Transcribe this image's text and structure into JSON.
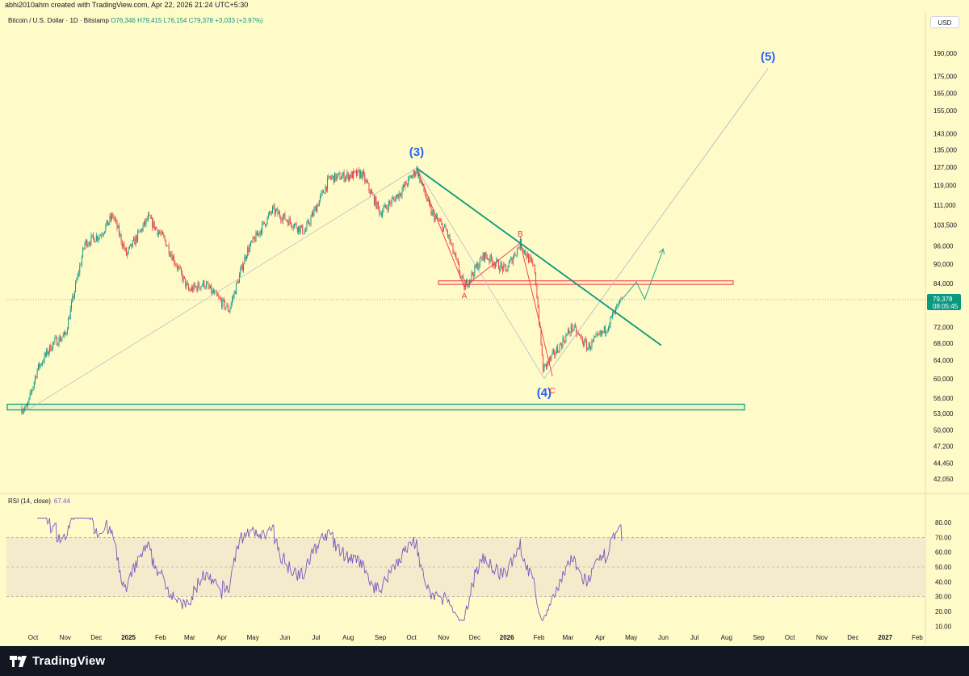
{
  "header": {
    "text": "abhi2010ahm created with TradingView.com, Apr 22, 2026 21:24 UTC+5:30"
  },
  "legend": {
    "symbol": "Bitcoin / U.S. Dollar · 1D · Bitstamp",
    "open": "O76,346",
    "high": "H79,415",
    "low": "L76,154",
    "close": "C79,378",
    "change": "+3,033 (+3.97%)"
  },
  "currency": "USD",
  "price_tag": {
    "price": "79,378",
    "countdown": "08:05:45"
  },
  "rsi_legend": {
    "label": "RSI (14, close)",
    "value": "67.44"
  },
  "footer": {
    "brand": "TradingView"
  },
  "colors": {
    "background": "#fffbc8",
    "up": "#089981",
    "down": "#f23645",
    "rsi_line": "#7e57c2",
    "rsi_band": "#f2e8cc",
    "trendline": "#089981",
    "wave_label": "#2962ff",
    "abc_label": "#f23645"
  },
  "chart_data": [
    {
      "type": "candlestick",
      "title": "Bitcoin / U.S. Dollar · 1D · Bitstamp",
      "y_scale": "log",
      "ylim": [
        40000,
        205000
      ],
      "y_ticks": [
        "190,000",
        "175,000",
        "165,000",
        "155,000",
        "143,000",
        "135,000",
        "127,000",
        "119,000",
        "111,000",
        "103,500",
        "96,000",
        "90,000",
        "84,000",
        "72,000",
        "68,000",
        "64,000",
        "60,000",
        "56,000",
        "53,000",
        "50,000",
        "47,200",
        "44,450",
        "42,050"
      ],
      "x_ticks": [
        "Oct",
        "Nov",
        "Dec",
        "2025",
        "Feb",
        "Mar",
        "Apr",
        "May",
        "Jun",
        "Jul",
        "Aug",
        "Sep",
        "Oct",
        "Nov",
        "Dec",
        "2026",
        "Feb",
        "Mar",
        "Apr",
        "May",
        "Jun",
        "Jul",
        "Aug",
        "Sep",
        "Oct",
        "Nov",
        "Dec",
        "2027",
        "Feb"
      ],
      "price_path": [
        [
          "2024-09-25",
          54000
        ],
        [
          "2024-10-05",
          62000
        ],
        [
          "2024-10-20",
          68000
        ],
        [
          "2024-11-01",
          70000
        ],
        [
          "2024-11-10",
          82000
        ],
        [
          "2024-11-20",
          97000
        ],
        [
          "2024-12-05",
          100000
        ],
        [
          "2024-12-17",
          107000
        ],
        [
          "2024-12-30",
          93000
        ],
        [
          "2025-01-20",
          106000
        ],
        [
          "2025-02-05",
          98000
        ],
        [
          "2025-02-28",
          82000
        ],
        [
          "2025-03-15",
          84000
        ],
        [
          "2025-04-08",
          76500
        ],
        [
          "2025-04-25",
          94000
        ],
        [
          "2025-05-20",
          109000
        ],
        [
          "2025-06-20",
          101000
        ],
        [
          "2025-07-14",
          122000
        ],
        [
          "2025-08-14",
          124000
        ],
        [
          "2025-09-01",
          108000
        ],
        [
          "2025-09-20",
          116000
        ],
        [
          "2025-10-06",
          126000
        ],
        [
          "2025-10-20",
          108000
        ],
        [
          "2025-11-04",
          101000
        ],
        [
          "2025-11-21",
          83000
        ],
        [
          "2025-12-10",
          93000
        ],
        [
          "2025-12-31",
          88000
        ],
        [
          "2026-01-14",
          97000
        ],
        [
          "2026-01-28",
          88000
        ],
        [
          "2026-02-05",
          62000
        ],
        [
          "2026-02-20",
          67000
        ],
        [
          "2026-03-05",
          72000
        ],
        [
          "2026-03-20",
          67000
        ],
        [
          "2026-04-05",
          71000
        ],
        [
          "2026-04-22",
          79378
        ]
      ],
      "annotations": {
        "wave_labels": [
          {
            "text": "(3)",
            "date": "2025-10-06",
            "price": 127000
          },
          {
            "text": "(4)",
            "date": "2026-02-06",
            "price": 60000
          },
          {
            "text": "(5)",
            "date": "2026-09-10",
            "price": 180000
          }
        ],
        "abc_labels": [
          {
            "text": "A",
            "date": "2025-11-21",
            "price": 83000
          },
          {
            "text": "B",
            "date": "2026-01-14",
            "price": 97000
          },
          {
            "text": "C",
            "date": "2026-02-14",
            "price": 60000
          }
        ],
        "descending_trendline": [
          [
            "2025-10-06",
            126500
          ],
          [
            "2026-05-30",
            67500
          ]
        ],
        "resistance_zone": [
          84000,
          84600
        ],
        "support_zone": [
          53700,
          54800
        ],
        "last_price_line": 79378,
        "projection_path": [
          [
            "2026-04-22",
            79378
          ],
          [
            "2026-05-06",
            84500
          ],
          [
            "2026-05-14",
            79500
          ],
          [
            "2026-06-01",
            95000
          ]
        ],
        "long_projection_line": [
          [
            "2026-02-06",
            60000
          ],
          [
            "2026-09-10",
            180000
          ]
        ]
      }
    },
    {
      "type": "line",
      "title": "RSI (14, close)",
      "ylim": [
        10,
        85
      ],
      "y_ticks": [
        "80.00",
        "70.00",
        "60.00",
        "50.00",
        "40.00",
        "30.00",
        "20.00",
        "10.00"
      ],
      "band": [
        30,
        70
      ],
      "levels": [
        30,
        50,
        70
      ],
      "series": [
        {
          "name": "RSI (14, close)",
          "last": 67.44
        }
      ]
    }
  ]
}
